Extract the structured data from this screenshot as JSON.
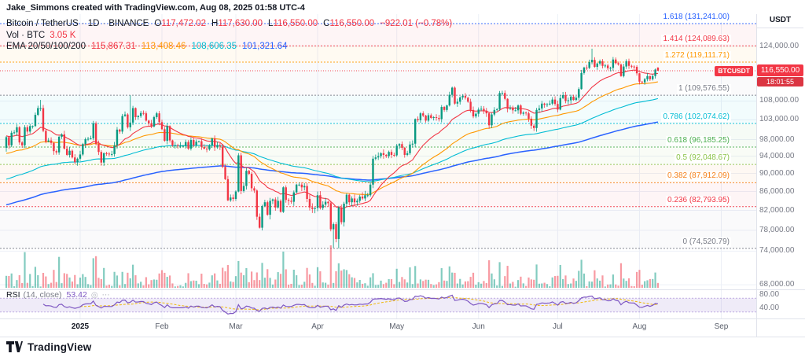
{
  "meta": {
    "attribution": "Jake_Simmons created with TradingView.com, Aug 08, 2025 01:58 UTC-4"
  },
  "legend": {
    "symbol": "Bitcoin / TetherUS",
    "separator": "·",
    "interval": "1D",
    "exchange": "BINANCE",
    "ohlc": [
      {
        "label": "O",
        "value": "117,472.02"
      },
      {
        "label": "H",
        "value": "117,630.00"
      },
      {
        "label": "L",
        "value": "116,550.00"
      },
      {
        "label": "C",
        "value": "116,550.00"
      }
    ],
    "change": "−922.01 (−0.78%)",
    "volume_label": "Vol · BTC",
    "volume_value": "3.05 K",
    "ema_label": "EMA 20/50/100/200",
    "ema_values": [
      "115,867.31",
      "113,408.46",
      "108,606.35",
      "101,321.64"
    ]
  },
  "price_line": {
    "symbol": "BTCUSDT",
    "price": "116,550.00",
    "countdown": "18:01:55",
    "value": 116550
  },
  "rsi": {
    "label": "RSI",
    "params": "(14, close)",
    "value": "53.42"
  },
  "axis": {
    "currency": "USDT",
    "price_labels": [
      {
        "text": "124,000.00",
        "value": 124000
      },
      {
        "text": "108,000.00",
        "value": 108000
      },
      {
        "text": "103,000.00",
        "value": 103000
      },
      {
        "text": "98,000.00",
        "value": 98000
      },
      {
        "text": "94,000.00",
        "value": 94000
      },
      {
        "text": "90,000.00",
        "value": 90000
      },
      {
        "text": "86,000.00",
        "value": 86000
      },
      {
        "text": "82,000.00",
        "value": 82000
      },
      {
        "text": "78,000.00",
        "value": 78000
      },
      {
        "text": "74,000.00",
        "value": 74000
      },
      {
        "text": "68,000.00",
        "value": 68000
      }
    ],
    "rsi_labels": [
      {
        "text": "80.00",
        "value": 80
      },
      {
        "text": "40.00",
        "value": 40
      }
    ],
    "time_labels": [
      {
        "label": "2025",
        "index": 28
      },
      {
        "label": "Feb",
        "index": 59
      },
      {
        "label": "Mar",
        "index": 87
      },
      {
        "label": "Apr",
        "index": 118
      },
      {
        "label": "May",
        "index": 148
      },
      {
        "label": "Jun",
        "index": 179
      },
      {
        "label": "Jul",
        "index": 209
      },
      {
        "label": "Aug",
        "index": 240
      },
      {
        "label": "Sep",
        "index": 271
      }
    ]
  },
  "footer": {
    "brand": "TradingView"
  },
  "theme": {
    "background": "#FFFFFF",
    "text_dark": "#131722",
    "text_gray": "#787B86",
    "up": "#089981",
    "down": "#F23645",
    "vol_up": "rgba(8,153,129,0.5)",
    "vol_down": "rgba(242,54,69,0.5)",
    "grid": "#EDF0F7",
    "separator": "#E0E3EB",
    "rsi_line": "#7E57C2",
    "rsi_ma": "#EFB90B",
    "rsi_band": "rgba(126,87,194,0.12)",
    "price_line": "#F23645",
    "badge_bg": "#F23645",
    "countdown_bg": "#DB3542"
  },
  "chart_data": {
    "type": "candlestick",
    "symbol": "BTCUSDT",
    "exchange": "BINANCE",
    "interval": "1D",
    "price_scale": "log",
    "unit": "thousands of USDT",
    "start_date": "2024-12-04",
    "end_date": "2025-08-08",
    "open_first": 96.0,
    "closes": [
      98.6,
      96.6,
      99.7,
      99.8,
      101.1,
      97.3,
      96.6,
      101.1,
      100.0,
      101.4,
      101.4,
      104.3,
      106.1,
      106.1,
      100.2,
      97.5,
      97.8,
      97.2,
      95.2,
      94.9,
      98.7,
      99.3,
      95.8,
      94.3,
      95.3,
      93.7,
      92.6,
      93.4,
      94.4,
      96.9,
      98.1,
      98.2,
      98.3,
      102.1,
      96.9,
      95.0,
      92.5,
      94.7,
      94.6,
      94.5,
      94.5,
      96.6,
      100.5,
      100.0,
      104.0,
      104.4,
      101.1,
      102.3,
      106.1,
      103.7,
      104.0,
      104.8,
      104.7,
      102.8,
      102.1,
      101.3,
      103.7,
      104.7,
      102.4,
      100.6,
      97.7,
      101.4,
      97.8,
      96.6,
      96.6,
      96.5,
      96.5,
      96.5,
      97.4,
      95.8,
      97.9,
      96.6,
      97.5,
      97.6,
      96.2,
      95.8,
      95.6,
      96.6,
      98.3,
      96.1,
      96.6,
      96.3,
      91.5,
      88.7,
      84.1,
      84.7,
      84.4,
      86.0,
      94.2,
      86.1,
      87.2,
      90.6,
      89.9,
      86.7,
      86.2,
      80.7,
      78.5,
      82.9,
      83.7,
      81.1,
      84.0,
      84.3,
      82.6,
      84.0,
      81.7,
      86.9,
      84.2,
      84.0,
      83.8,
      85.8,
      87.5,
      87.5,
      86.9,
      87.2,
      84.4,
      82.6,
      82.3,
      82.5,
      85.2,
      82.5,
      83.2,
      83.8,
      83.5,
      78.2,
      79.2,
      76.3,
      82.6,
      79.6,
      83.4,
      85.3,
      83.7,
      84.5,
      83.7,
      84.0,
      84.9,
      84.5,
      85.2,
      85.2,
      87.5,
      93.4,
      93.7,
      94.0,
      94.7,
      94.3,
      94.0,
      95.0,
      94.3,
      94.2,
      96.5,
      96.9,
      96.0,
      94.3,
      94.7,
      96.8,
      97.0,
      103.2,
      102.9,
      104.7,
      104.1,
      102.8,
      104.2,
      103.5,
      103.7,
      103.5,
      103.2,
      106.4,
      105.6,
      106.8,
      109.7,
      111.7,
      107.3,
      107.8,
      109.0,
      109.4,
      108.9,
      107.8,
      105.6,
      103.9,
      104.6,
      105.7,
      105.9,
      105.4,
      104.7,
      101.6,
      104.4,
      105.6,
      105.8,
      110.2,
      110.2,
      108.6,
      105.9,
      106.1,
      105.5,
      105.5,
      106.8,
      104.6,
      104.9,
      104.7,
      103.3,
      101.5,
      100.9,
      105.6,
      106.0,
      107.3,
      107.0,
      107.1,
      107.3,
      108.4,
      107.2,
      105.7,
      108.8,
      109.6,
      108.0,
      108.2,
      109.2,
      108.3,
      108.9,
      111.3,
      115.9,
      117.5,
      117.4,
      119.1,
      119.8,
      117.7,
      118.7,
      119.4,
      118.0,
      118.1,
      117.3,
      117.4,
      119.9,
      118.8,
      118.4,
      115.0,
      117.8,
      119.4,
      118.0,
      117.8,
      117.7,
      115.8,
      113.4,
      113.2,
      114.1,
      115.0,
      114.1,
      115.0,
      116.9,
      116.55
    ],
    "wick_overrides": {
      "13": {
        "h": 108.3
      },
      "47": {
        "h": 109.58
      },
      "124": {
        "l": 74.6
      },
      "126": {
        "l": 74.52
      },
      "169": {
        "h": 112.0
      },
      "222": {
        "h": 123.22
      },
      "247": {
        "o": 117.47,
        "h": 117.63,
        "l": 116.55,
        "c": 116.55
      }
    },
    "today": {
      "open": 117472.02,
      "high": 117630.0,
      "low": 116550.0,
      "close": 116550.0,
      "change": -922.01,
      "change_pct": -0.78,
      "volume": "3.05 K"
    },
    "ema": [
      {
        "period": 20,
        "seed": 99.0,
        "color": "#F23645",
        "last": 115867.31
      },
      {
        "period": 50,
        "seed": 94.5,
        "color": "#FF9800",
        "last": 113408.46
      },
      {
        "period": 100,
        "seed": 88.5,
        "color": "#00BCD4",
        "last": 108606.35
      },
      {
        "period": 200,
        "seed": 83.0,
        "color": "#2962FF",
        "last": 101321.64
      }
    ],
    "rsi": {
      "period": 14,
      "last": 53.42,
      "band": [
        30,
        70
      ]
    },
    "fib_levels": [
      {
        "level": "1.618",
        "price": 131241.0,
        "text": "1.618 (131,241.00)",
        "color": "#2962FF"
      },
      {
        "level": "1.414",
        "price": 124089.63,
        "text": "1.414 (124,089.63)",
        "color": "#F23645"
      },
      {
        "level": "1.272",
        "price": 119111.71,
        "text": "1.272 (119,111.71)",
        "color": "#FF9800"
      },
      {
        "level": "1",
        "price": 109576.55,
        "text": "1 (109,576.55)",
        "color": "#787B86"
      },
      {
        "level": "0.786",
        "price": 102074.62,
        "text": "0.786 (102,074.62)",
        "color": "#00BCD4"
      },
      {
        "level": "0.618",
        "price": 96185.25,
        "text": "0.618 (96,185.25)",
        "color": "#4CAF50"
      },
      {
        "level": "0.5",
        "price": 92048.67,
        "text": "0.5 (92,048.67)",
        "color": "#8BC34A"
      },
      {
        "level": "0.382",
        "price": 87912.09,
        "text": "0.382 (87,912.09)",
        "color": "#F57F17"
      },
      {
        "level": "0.236",
        "price": 82793.95,
        "text": "0.236 (82,793.95)",
        "color": "#F23645"
      },
      {
        "level": "0",
        "price": 74520.79,
        "text": "0 (74,520.79)",
        "color": "#787B86"
      }
    ]
  }
}
